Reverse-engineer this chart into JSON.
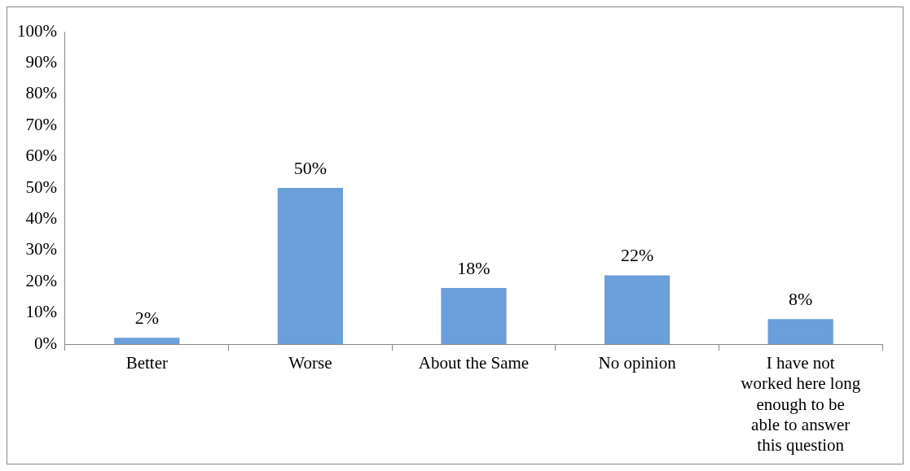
{
  "chart_data": {
    "type": "bar",
    "categories": [
      "Better",
      "Worse",
      "About the Same",
      "No opinion",
      "I have not worked here long enough to be able to answer this question"
    ],
    "values": [
      2,
      50,
      18,
      22,
      8
    ],
    "value_labels": [
      "2%",
      "50%",
      "18%",
      "22%",
      "8%"
    ],
    "color": "#6a9fd9",
    "ylim": [
      0,
      100
    ],
    "yticks": [
      {
        "value": 0,
        "label": "0%"
      },
      {
        "value": 10,
        "label": "10%"
      },
      {
        "value": 20,
        "label": "20%"
      },
      {
        "value": 30,
        "label": "30%"
      },
      {
        "value": 40,
        "label": "40%"
      },
      {
        "value": 50,
        "label": "50%"
      },
      {
        "value": 60,
        "label": "60%"
      },
      {
        "value": 70,
        "label": "70%"
      },
      {
        "value": 80,
        "label": "80%"
      },
      {
        "value": 90,
        "label": "90%"
      },
      {
        "value": 100,
        "label": "100%"
      }
    ],
    "legend": false
  }
}
